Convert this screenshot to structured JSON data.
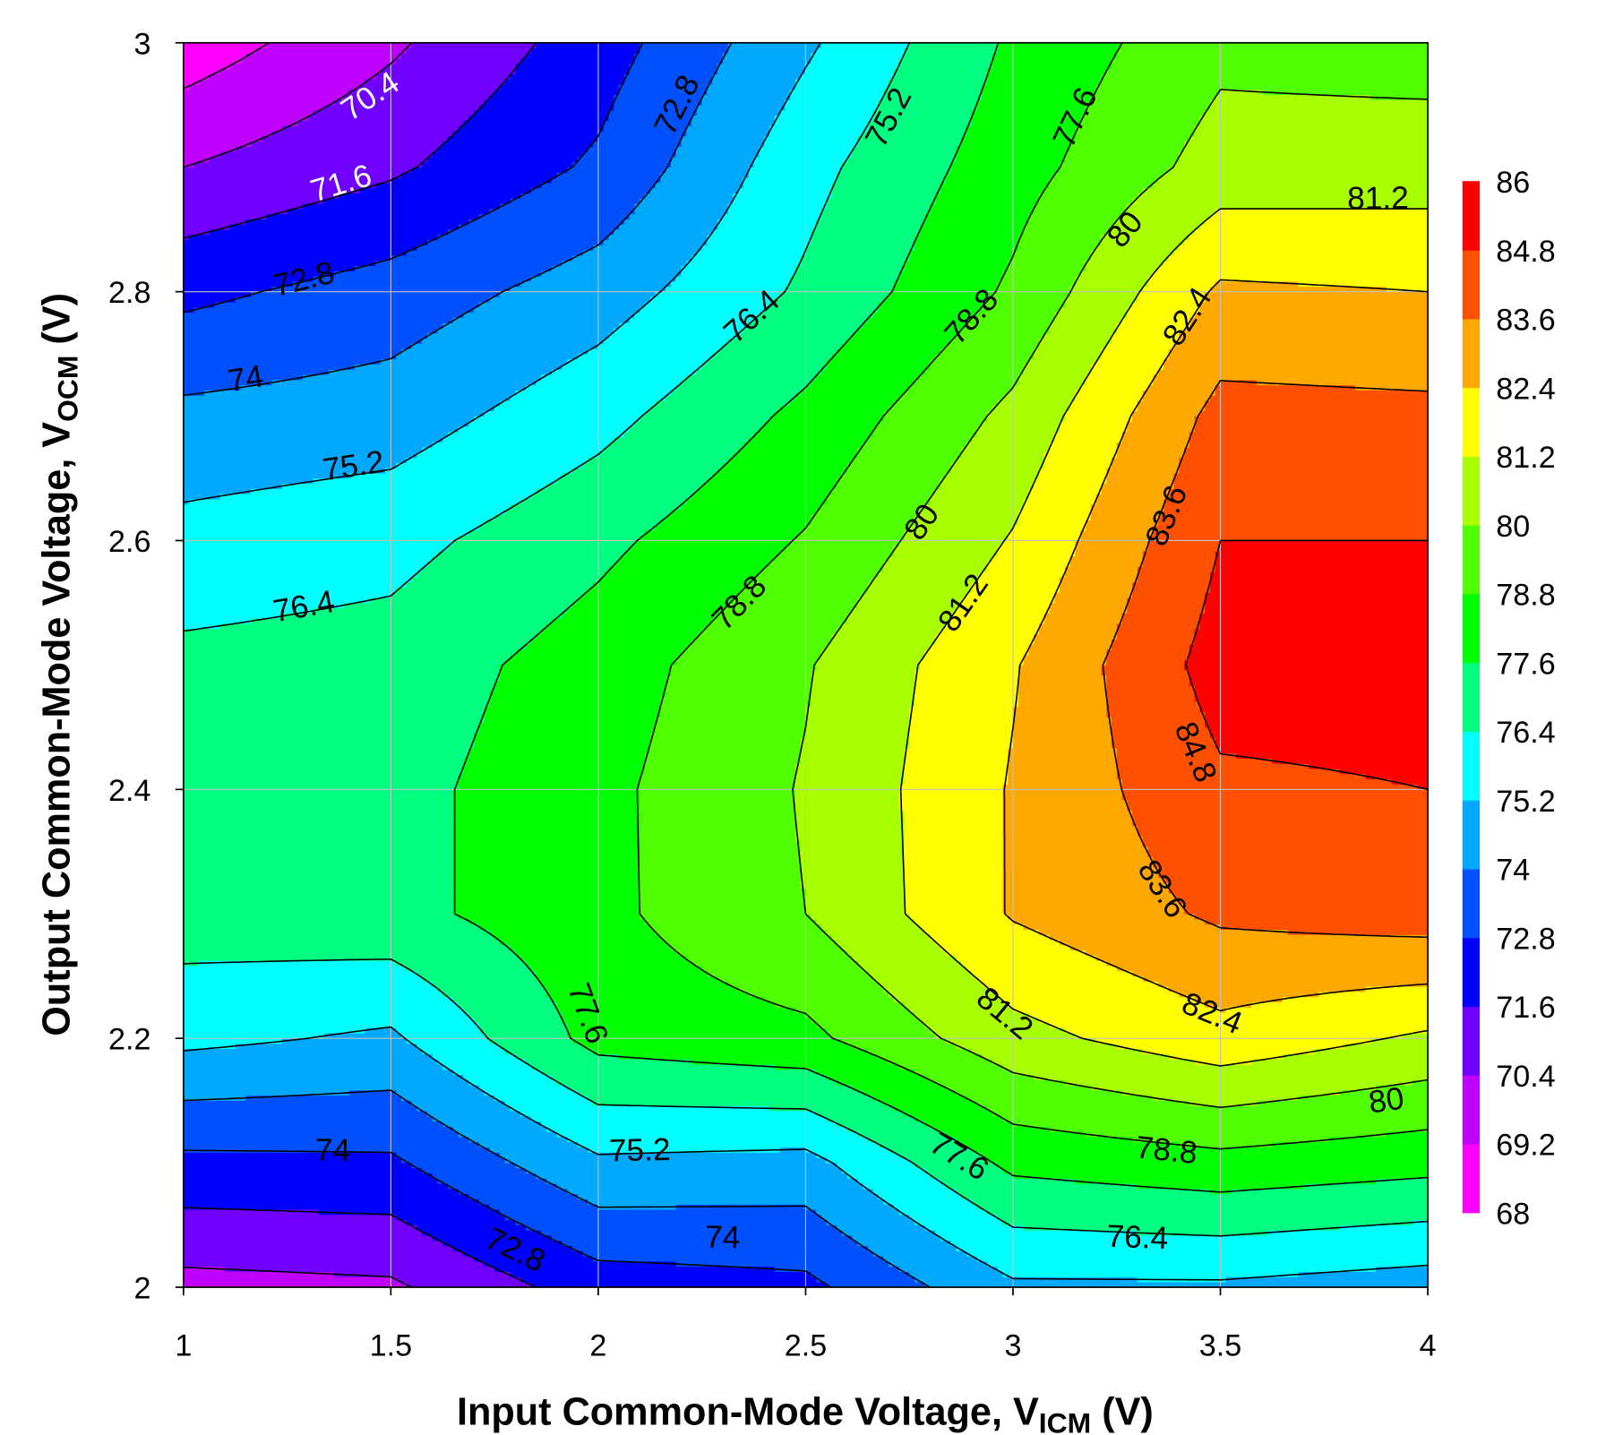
{
  "chart_data": {
    "type": "contour",
    "title": "",
    "xlabel": {
      "main": "Input Common-Mode Voltage, V",
      "sub": "ICM",
      "tail": " (V)"
    },
    "ylabel": {
      "main": "Output Common-Mode Voltage, V",
      "sub": "OCM",
      "tail": " (V)"
    },
    "xlim": [
      1,
      4
    ],
    "ylim": [
      2,
      3
    ],
    "xticks": [
      "1",
      "1.5",
      "2",
      "2.5",
      "3",
      "3.5",
      "4"
    ],
    "yticks": [
      "2",
      "2.2",
      "2.4",
      "2.6",
      "2.8",
      "3"
    ],
    "grid": true,
    "x": [
      1,
      1.5,
      2,
      2.5,
      3,
      3.5,
      4
    ],
    "y": [
      2,
      2.1,
      2.2,
      2.3,
      2.4,
      2.5,
      2.6,
      2.7,
      2.8,
      2.9,
      3
    ],
    "z_by_column": [
      [
        70.0,
        72.5,
        75.5,
        77.0,
        77.0,
        76.7,
        75.6,
        74.3,
        72.5,
        70.4,
        68.5
      ],
      [
        70.2,
        72.6,
        75.0,
        77.2,
        77.2,
        76.9,
        76.0,
        74.6,
        73.3,
        71.4,
        70.2
      ],
      [
        72.2,
        75.0,
        78.0,
        78.5,
        78.5,
        78.2,
        77.3,
        76.0,
        74.6,
        73.0,
        72.2
      ],
      [
        72.5,
        74.8,
        78.5,
        80.0,
        80.1,
        79.9,
        78.9,
        77.9,
        76.6,
        76.0,
        75.0
      ],
      [
        75.0,
        77.9,
        80.8,
        82.5,
        82.5,
        82.3,
        81.3,
        80.3,
        79.0,
        78.3,
        77.8
      ],
      [
        75.0,
        78.4,
        82.0,
        83.8,
        84.6,
        85.3,
        84.8,
        84.0,
        82.6,
        80.5,
        79.7
      ],
      [
        74.6,
        78.0,
        81.0,
        84.2,
        84.8,
        85.3,
        84.8,
        83.9,
        82.4,
        80.6,
        79.5
      ]
    ],
    "levels": [
      68,
      69.2,
      70.4,
      71.6,
      72.8,
      74,
      75.2,
      76.4,
      77.6,
      78.8,
      80,
      81.2,
      82.4,
      83.6,
      84.8,
      86
    ],
    "level_colors": [
      "#ff00ff",
      "#c000ff",
      "#7000ff",
      "#0000ff",
      "#0050ff",
      "#00a8ff",
      "#00ffff",
      "#00ff80",
      "#00ff00",
      "#50ff00",
      "#a8ff00",
      "#ffff00",
      "#ffa800",
      "#ff5000",
      "#ff0000"
    ],
    "colorbar": {
      "position": "right",
      "labels": [
        "86",
        "84.8",
        "83.6",
        "82.4",
        "81.2",
        "80",
        "78.8",
        "77.6",
        "76.4",
        "75.2",
        "74",
        "72.8",
        "71.6",
        "70.4",
        "69.2",
        "68"
      ]
    },
    "contour_labels": [
      {
        "text": "70.4",
        "x": 1.45,
        "y": 2.957,
        "color": "#ffffff"
      },
      {
        "text": "72.8",
        "x": 2.19,
        "y": 2.95,
        "color": "#000000"
      },
      {
        "text": "75.2",
        "x": 2.7,
        "y": 2.94,
        "color": "#000000"
      },
      {
        "text": "77.6",
        "x": 3.15,
        "y": 2.94,
        "color": "#000000"
      },
      {
        "text": "71.6",
        "x": 1.38,
        "y": 2.887,
        "color": "#ffffff"
      },
      {
        "text": "72.8",
        "x": 1.29,
        "y": 2.81,
        "color": "#000000"
      },
      {
        "text": "74",
        "x": 1.15,
        "y": 2.73,
        "color": "#000000"
      },
      {
        "text": "76.4",
        "x": 2.37,
        "y": 2.78,
        "color": "#000000"
      },
      {
        "text": "80",
        "x": 3.27,
        "y": 2.85,
        "color": "#000000"
      },
      {
        "text": "81.2",
        "x": 3.88,
        "y": 2.875,
        "color": "#000000"
      },
      {
        "text": "78.8",
        "x": 2.9,
        "y": 2.78,
        "color": "#000000"
      },
      {
        "text": "82.4",
        "x": 3.42,
        "y": 2.78,
        "color": "#000000"
      },
      {
        "text": "75.2",
        "x": 1.41,
        "y": 2.66,
        "color": "#000000"
      },
      {
        "text": "83.6",
        "x": 3.37,
        "y": 2.62,
        "color": "#000000"
      },
      {
        "text": "80",
        "x": 2.78,
        "y": 2.615,
        "color": "#000000"
      },
      {
        "text": "76.4",
        "x": 1.29,
        "y": 2.547,
        "color": "#000000"
      },
      {
        "text": "81.2",
        "x": 2.88,
        "y": 2.55,
        "color": "#000000"
      },
      {
        "text": "78.8",
        "x": 2.34,
        "y": 2.55,
        "color": "#000000"
      },
      {
        "text": "84.8",
        "x": 3.44,
        "y": 2.43,
        "color": "#000000"
      },
      {
        "text": "83.6",
        "x": 3.36,
        "y": 2.32,
        "color": "#000000"
      },
      {
        "text": "81.2",
        "x": 2.98,
        "y": 2.22,
        "color": "#000000"
      },
      {
        "text": "82.4",
        "x": 3.48,
        "y": 2.22,
        "color": "#000000"
      },
      {
        "text": "77.6",
        "x": 1.975,
        "y": 2.22,
        "color": "#000000"
      },
      {
        "text": "80",
        "x": 3.9,
        "y": 2.15,
        "color": "#000000"
      },
      {
        "text": "74",
        "x": 1.36,
        "y": 2.11,
        "color": "#000000"
      },
      {
        "text": "75.2",
        "x": 2.1,
        "y": 2.11,
        "color": "#000000"
      },
      {
        "text": "78.8",
        "x": 3.37,
        "y": 2.11,
        "color": "#000000"
      },
      {
        "text": "77.6",
        "x": 2.87,
        "y": 2.105,
        "color": "#000000"
      },
      {
        "text": "76.4",
        "x": 3.3,
        "y": 2.04,
        "color": "#000000"
      },
      {
        "text": "74",
        "x": 2.3,
        "y": 2.04,
        "color": "#000000"
      },
      {
        "text": "72.8",
        "x": 1.8,
        "y": 2.03,
        "color": "#000000"
      }
    ]
  }
}
